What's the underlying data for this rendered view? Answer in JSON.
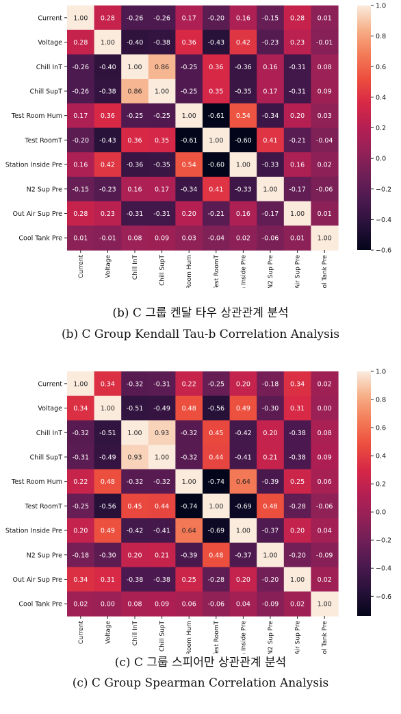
{
  "chart_data": [
    {
      "type": "heatmap",
      "labels": [
        "Current",
        "Voltage",
        "Chill InT",
        "Chill SupT",
        "Test Room Hum",
        "Test RoomT",
        "Station Inside Pre",
        "N2 Sup Pre",
        "Out Air Sup Pre",
        "Cool Tank Pre"
      ],
      "values": [
        [
          1.0,
          0.28,
          -0.26,
          -0.26,
          0.17,
          -0.2,
          0.16,
          -0.15,
          0.28,
          0.01
        ],
        [
          0.28,
          1.0,
          -0.4,
          -0.38,
          0.36,
          -0.43,
          0.42,
          -0.23,
          0.23,
          -0.01
        ],
        [
          -0.26,
          -0.4,
          1.0,
          0.86,
          -0.25,
          0.36,
          -0.36,
          0.16,
          -0.31,
          0.08
        ],
        [
          -0.26,
          -0.38,
          0.86,
          1.0,
          -0.25,
          0.35,
          -0.35,
          0.17,
          -0.31,
          0.09
        ],
        [
          0.17,
          0.36,
          -0.25,
          -0.25,
          1.0,
          -0.61,
          0.54,
          -0.34,
          0.2,
          0.03
        ],
        [
          -0.2,
          -0.43,
          0.36,
          0.35,
          -0.61,
          1.0,
          -0.6,
          0.41,
          -0.21,
          -0.04
        ],
        [
          0.16,
          0.42,
          -0.36,
          -0.35,
          0.54,
          -0.6,
          1.0,
          -0.33,
          0.16,
          0.02
        ],
        [
          -0.15,
          -0.23,
          0.16,
          0.17,
          -0.34,
          0.41,
          -0.33,
          1.0,
          -0.17,
          -0.06
        ],
        [
          0.28,
          0.23,
          -0.31,
          -0.31,
          0.2,
          -0.21,
          0.16,
          -0.17,
          1.0,
          0.01
        ],
        [
          0.01,
          -0.01,
          0.08,
          0.09,
          0.03,
          -0.04,
          0.02,
          -0.06,
          0.01,
          1.0
        ]
      ],
      "colorbar": {
        "range": [
          -0.6,
          1.0
        ],
        "ticks": [
          "1.0",
          "0.8",
          "0.6",
          "0.4",
          "0.2",
          "0.0",
          "−0.2",
          "−0.4",
          "−0.6"
        ]
      },
      "caption_kr": "(b) C 그룹 켄달 타우 상관관계 분석",
      "caption_en": "(b) C Group Kendall Tau-b Correlation Analysis"
    },
    {
      "type": "heatmap",
      "labels": [
        "Current",
        "Voltage",
        "Chill InT",
        "Chill SupT",
        "Test Room Hum",
        "Test RoomT",
        "Station Inside Pre",
        "N2 Sup Pre",
        "Out Air Sup Pre",
        "Cool Tank Pre"
      ],
      "values": [
        [
          1.0,
          0.34,
          -0.32,
          -0.31,
          0.22,
          -0.25,
          0.2,
          -0.18,
          0.34,
          0.02
        ],
        [
          0.34,
          1.0,
          -0.51,
          -0.49,
          0.48,
          -0.56,
          0.49,
          -0.3,
          0.31,
          0.0
        ],
        [
          -0.32,
          -0.51,
          1.0,
          0.93,
          -0.32,
          0.45,
          -0.42,
          0.2,
          -0.38,
          0.08
        ],
        [
          -0.31,
          -0.49,
          0.93,
          1.0,
          -0.32,
          0.44,
          -0.41,
          0.21,
          -0.38,
          0.09
        ],
        [
          0.22,
          0.48,
          -0.32,
          -0.32,
          1.0,
          -0.74,
          0.64,
          -0.39,
          0.25,
          0.06
        ],
        [
          -0.25,
          -0.56,
          0.45,
          0.44,
          -0.74,
          1.0,
          -0.69,
          0.48,
          -0.28,
          -0.06
        ],
        [
          0.2,
          0.49,
          -0.42,
          -0.41,
          0.64,
          -0.69,
          1.0,
          -0.37,
          0.2,
          0.04
        ],
        [
          -0.18,
          -0.3,
          0.2,
          0.21,
          -0.39,
          0.48,
          -0.37,
          1.0,
          -0.2,
          -0.09
        ],
        [
          0.34,
          0.31,
          -0.38,
          -0.38,
          0.25,
          -0.28,
          0.2,
          -0.2,
          1.0,
          0.02
        ],
        [
          0.02,
          0.0,
          0.08,
          0.09,
          0.06,
          -0.06,
          0.04,
          -0.09,
          0.02,
          1.0
        ]
      ],
      "colorbar": {
        "range": [
          -0.74,
          1.0
        ],
        "ticks": [
          "1.0",
          "0.8",
          "0.6",
          "0.4",
          "0.2",
          "0.0",
          "−0.2",
          "−0.4",
          "−0.6"
        ]
      },
      "caption_kr": "(c) C 그룹 스피어만 상관관계 분석",
      "caption_en": "(c) C Group Spearman Correlation Analysis"
    }
  ]
}
